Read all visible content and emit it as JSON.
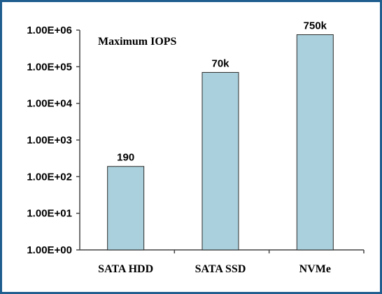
{
  "chart_data": {
    "type": "bar",
    "title": "Maximum IOPS",
    "xlabel": "",
    "ylabel": "",
    "yscale": "log",
    "ylim": [
      1,
      1000000
    ],
    "grid": false,
    "legend": "none",
    "y_ticks": [
      "1.00E+00",
      "1.00E+01",
      "1.00E+02",
      "1.00E+03",
      "1.00E+04",
      "1.00E+05",
      "1.00E+06"
    ],
    "categories": [
      "SATA HDD",
      "SATA SSD",
      "NVMe"
    ],
    "values": [
      190,
      70000,
      750000
    ],
    "data_labels": [
      "190",
      "70k",
      "750k"
    ],
    "colors": {
      "bar_fill": "#a9d0dc",
      "bar_stroke": "#2b2b2b",
      "axis": "#444444",
      "frame": "#1f5d8f"
    }
  }
}
